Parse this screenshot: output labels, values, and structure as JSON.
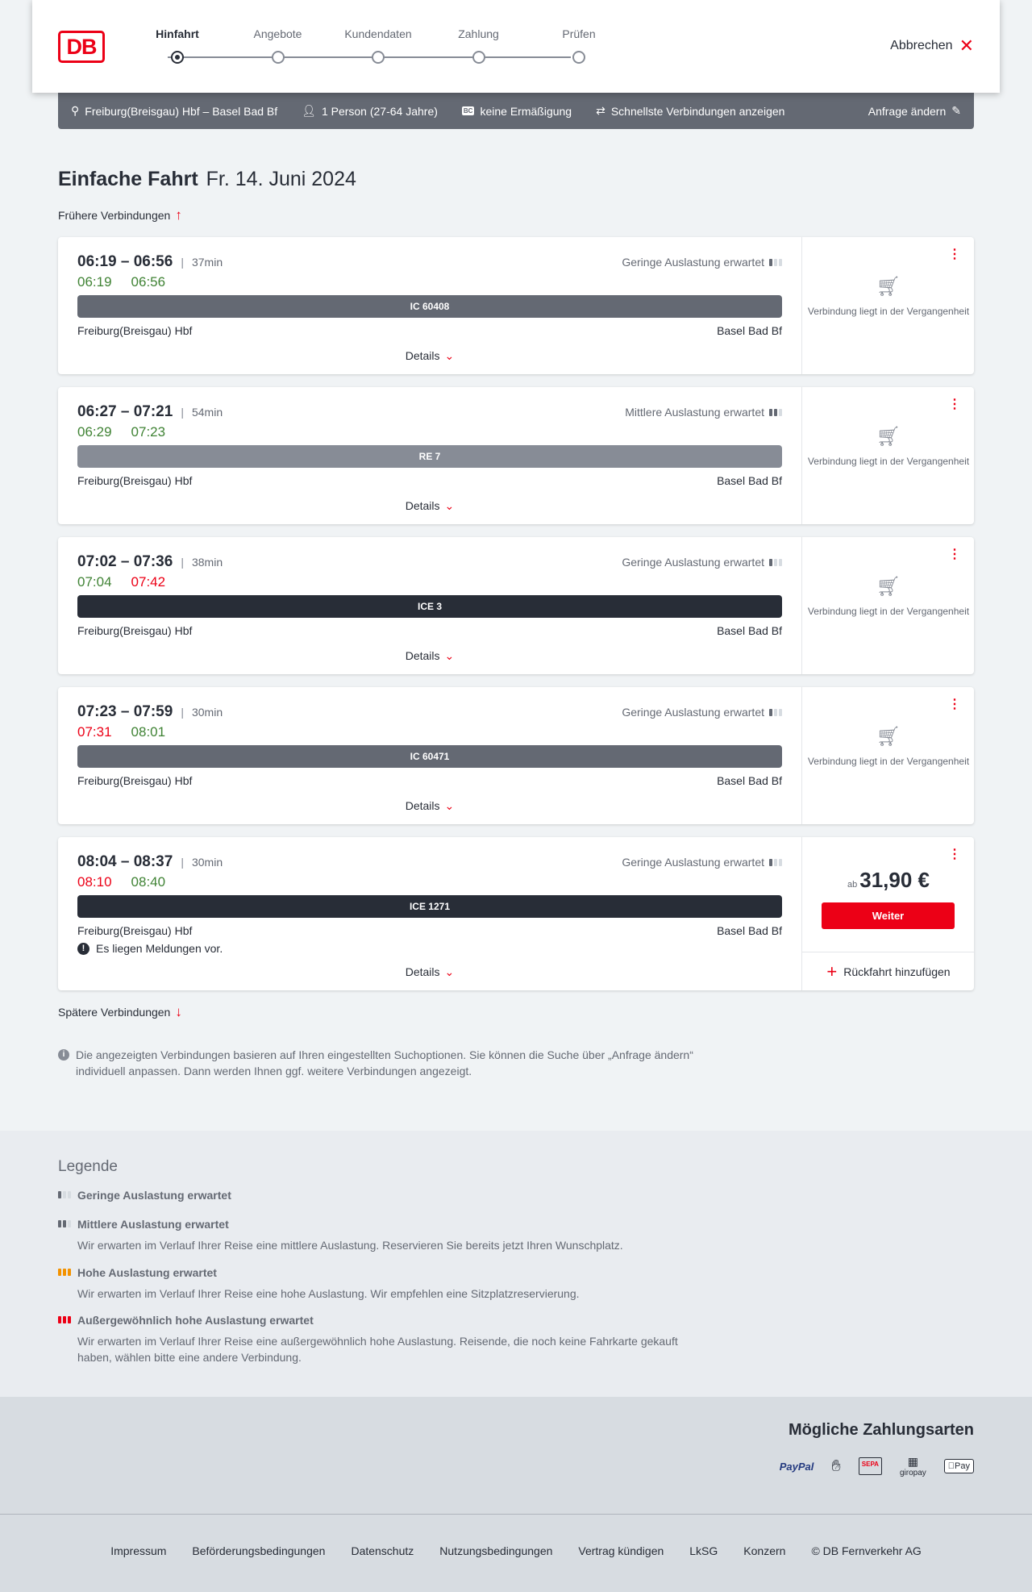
{
  "header": {
    "logo": "DB",
    "steps": [
      "Hinfahrt",
      "Angebote",
      "Kundendaten",
      "Zahlung",
      "Prüfen"
    ],
    "active_step": 0,
    "cancel": "Abbrechen"
  },
  "search": {
    "route": "Freiburg(Breisgau) Hbf – Basel Bad Bf",
    "passengers": "1 Person (27-64 Jahre)",
    "discount": "keine Ermäßigung",
    "fastest": "Schnellste Verbindungen anzeigen",
    "change": "Anfrage ändern"
  },
  "page": {
    "title": "Einfache Fahrt",
    "date": "Fr. 14. Juni 2024",
    "earlier": "Frühere Verbindungen",
    "later": "Spätere Verbindungen"
  },
  "colors": {
    "accent": "#ec0016",
    "on_time": "#408335",
    "delayed": "#ec0016",
    "ic": "#646973",
    "re": "#878c96",
    "ice": "#282d37"
  },
  "connections": [
    {
      "time": "06:19 – 06:56",
      "duration": "37min",
      "occupancy": "Geringe Auslastung erwartet",
      "occ_level": 1,
      "rt_dep": "06:19",
      "rt_dep_status": "g",
      "rt_arr": "06:56",
      "rt_arr_status": "g",
      "train": "IC 60408",
      "train_type": "ic",
      "from": "Freiburg(Breisgau) Hbf",
      "to": "Basel Bad Bf",
      "details": "Details",
      "status": "Verbindung liegt in der Vergangenheit"
    },
    {
      "time": "06:27 – 07:21",
      "duration": "54min",
      "occupancy": "Mittlere Auslastung erwartet",
      "occ_level": 2,
      "rt_dep": "06:29",
      "rt_dep_status": "g",
      "rt_arr": "07:23",
      "rt_arr_status": "g",
      "train": "RE 7",
      "train_type": "re",
      "from": "Freiburg(Breisgau) Hbf",
      "to": "Basel Bad Bf",
      "details": "Details",
      "status": "Verbindung liegt in der Vergangenheit"
    },
    {
      "time": "07:02 – 07:36",
      "duration": "38min",
      "occupancy": "Geringe Auslastung erwartet",
      "occ_level": 1,
      "rt_dep": "07:04",
      "rt_dep_status": "g",
      "rt_arr": "07:42",
      "rt_arr_status": "r",
      "train": "ICE 3",
      "train_type": "ice",
      "from": "Freiburg(Breisgau) Hbf",
      "to": "Basel Bad Bf",
      "details": "Details",
      "status": "Verbindung liegt in der Vergangenheit"
    },
    {
      "time": "07:23 – 07:59",
      "duration": "30min",
      "occupancy": "Geringe Auslastung erwartet",
      "occ_level": 1,
      "rt_dep": "07:31",
      "rt_dep_status": "r",
      "rt_arr": "08:01",
      "rt_arr_status": "g",
      "train": "IC 60471",
      "train_type": "ic",
      "from": "Freiburg(Breisgau) Hbf",
      "to": "Basel Bad Bf",
      "details": "Details",
      "status": "Verbindung liegt in der Vergangenheit"
    },
    {
      "time": "08:04 – 08:37",
      "duration": "30min",
      "occupancy": "Geringe Auslastung erwartet",
      "occ_level": 1,
      "rt_dep": "08:10",
      "rt_dep_status": "r",
      "rt_arr": "08:40",
      "rt_arr_status": "g",
      "train": "ICE 1271",
      "train_type": "ice",
      "from": "Freiburg(Breisgau) Hbf",
      "to": "Basel Bad Bf",
      "message": "Es liegen Meldungen vor.",
      "details": "Details",
      "price_prefix": "ab",
      "price": "31,90 €",
      "button": "Weiter",
      "return": "Rückfahrt hinzufügen"
    }
  ],
  "note": "Die angezeigten Verbindungen basieren auf Ihren eingestellten Suchoptionen. Sie können die Suche über „Anfrage ändern“ individuell anpassen. Dann werden Ihnen ggf. weitere Verbindungen angezeigt.",
  "legend": {
    "title": "Legende",
    "items": [
      {
        "label": "Geringe Auslastung erwartet",
        "text": "",
        "level": 1
      },
      {
        "label": "Mittlere Auslastung erwartet",
        "text": "Wir erwarten im Verlauf Ihrer Reise eine mittlere Auslastung. Reservieren Sie bereits jetzt Ihren Wunschplatz.",
        "level": 2
      },
      {
        "label": "Hohe Auslastung erwartet",
        "text": "Wir erwarten im Verlauf Ihrer Reise eine hohe Auslastung. Wir empfehlen eine Sitzplatzreservierung.",
        "level": 3
      },
      {
        "label": "Außergewöhnlich hohe Auslastung erwartet",
        "text": "Wir erwarten im Verlauf Ihrer Reise eine außergewöhnlich hohe Auslastung. Reisende, die noch keine Fahrkarte gekauft haben, wählen bitte eine andere Verbindung.",
        "level": 4
      }
    ]
  },
  "payment": {
    "title": "Mögliche Zahlungsarten",
    "methods": [
      "PayPal",
      "Kreditkarte",
      "SEPA",
      "giropay",
      "Pay"
    ]
  },
  "footer": [
    "Impressum",
    "Beförderungsbedingungen",
    "Datenschutz",
    "Nutzungsbedingungen",
    "Vertrag kündigen",
    "LkSG",
    "Konzern",
    "© DB Fernverkehr AG"
  ]
}
